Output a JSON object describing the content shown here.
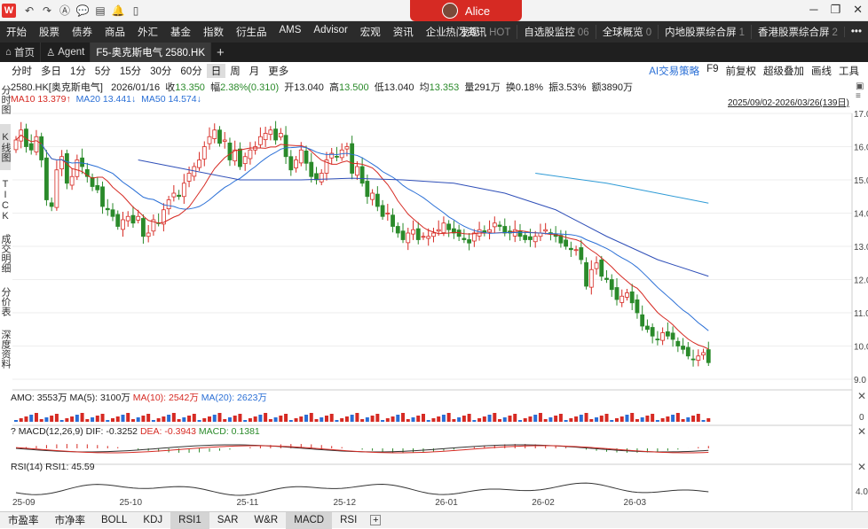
{
  "app": {
    "logo": "W",
    "user": "Alice"
  },
  "menu": {
    "items": [
      "开始",
      "股票",
      "债券",
      "商品",
      "外汇",
      "基金",
      "指数",
      "衍生品",
      "AMS",
      "Advisor",
      "宏观",
      "资讯",
      "企业",
      "发现"
    ],
    "right": [
      {
        "label": "热门资讯",
        "tag": "HOT"
      },
      {
        "label": "自选股监控",
        "tag": "06"
      },
      {
        "label": "全球概览",
        "tag": "0"
      },
      {
        "label": "内地股票综合屏",
        "tag": "1"
      },
      {
        "label": "香港股票综合屏",
        "tag": "2"
      }
    ]
  },
  "tabs": [
    {
      "label": "首页"
    },
    {
      "label": "Agent"
    },
    {
      "label": "F5-奥克斯电气 2580.HK"
    }
  ],
  "periods": [
    "分时",
    "多日",
    "1分",
    "5分",
    "15分",
    "30分",
    "60分",
    "日",
    "周",
    "月",
    "更多"
  ],
  "tools": [
    "AI交易策略",
    "F9",
    "前复权",
    "超级叠加",
    "画线",
    "工具"
  ],
  "leftnav": [
    {
      "label": "分时图"
    },
    {
      "label": "K线图"
    },
    {
      "label": "TICK"
    },
    {
      "label": "成交明细"
    },
    {
      "label": "分价表"
    },
    {
      "label": "深度资料"
    }
  ],
  "quote": {
    "name": "2580.HK[奥克斯电气]",
    "date": "2026/01/16",
    "close_label": "收",
    "close": "13.350",
    "chg_label": "幅",
    "chg": "2.38%(0.310)",
    "open_label": "开",
    "open": "13.040",
    "high_label": "高",
    "high": "13.500",
    "low_label": "低",
    "low": "13.040",
    "avg_label": "均",
    "avg": "13.353",
    "vol_label": "量",
    "vol": "291万",
    "turn_label": "换",
    "turn": "0.18%",
    "amp_label": "振",
    "amp": "3.53%",
    "amt_label": "额",
    "amt": "3890万"
  },
  "ma": {
    "ma10": "MA10 13.379↑",
    "ma20": "MA20 13.441↓",
    "ma50": "MA50 14.574↓"
  },
  "range": "2025/09/02-2026/03/26(139日)",
  "amo": {
    "label": "AMO: 3553万",
    "ma5": "MA(5): 3100万",
    "ma10": "MA(10): 2542万",
    "ma20": "MA(20): 2623万",
    "zero": "0"
  },
  "macd": {
    "label": "MACD(12,26,9)",
    "dif": "DIF: -0.3252",
    "dea": "DEA: -0.3943",
    "macd": "MACD: 0.1381"
  },
  "rsi": {
    "label": "RSI(14)",
    "rsi1": "RSI1: 45.59",
    "level": "4.00"
  },
  "bottom_tabs": [
    "市盈率",
    "市净率",
    "BOLL",
    "KDJ",
    "RSI1",
    "SAR",
    "W&R",
    "MACD",
    "RSI"
  ],
  "colors": {
    "up": "#d62a23",
    "down": "#2a8a2a",
    "ma10": "#d62a23",
    "ma20": "#2a6fd6",
    "ma50": "#2f9bd6"
  },
  "chart_data": {
    "type": "candlestick",
    "ylim": [
      9,
      17
    ],
    "yticks": [
      "17.0",
      "16.0",
      "15.0",
      "14.0",
      "13.0",
      "12.0",
      "11.0",
      "10.0",
      "9.0"
    ],
    "xticks": [
      {
        "label": "25-09",
        "idx": 0
      },
      {
        "label": "25-10",
        "idx": 21
      },
      {
        "label": "25-11",
        "idx": 44
      },
      {
        "label": "25-12",
        "idx": 63
      },
      {
        "label": "26-01",
        "idx": 83
      },
      {
        "label": "26-02",
        "idx": 102
      },
      {
        "label": "26-03",
        "idx": 120
      }
    ],
    "closes": [
      16.2,
      16.5,
      16.0,
      15.9,
      16.3,
      15.6,
      14.4,
      14.2,
      15.3,
      15.7,
      14.9,
      15.1,
      15.6,
      15.4,
      15.1,
      14.8,
      14.7,
      14.2,
      14.1,
      13.9,
      13.6,
      13.8,
      13.9,
      13.7,
      13.9,
      13.3,
      13.4,
      13.8,
      13.7,
      14.1,
      14.4,
      14.6,
      14.5,
      14.9,
      15.2,
      15.4,
      15.6,
      16.0,
      16.3,
      16.5,
      16.1,
      16.2,
      15.6,
      15.9,
      15.4,
      15.7,
      15.9,
      16.0,
      16.3,
      16.4,
      16.5,
      16.2,
      16.4,
      15.7,
      15.3,
      15.6,
      15.9,
      15.5,
      15.1,
      15.0,
      15.2,
      15.6,
      15.8,
      15.7,
      15.9,
      16.0,
      15.2,
      15.4,
      14.9,
      14.5,
      14.6,
      14.2,
      13.9,
      14.0,
      13.6,
      13.4,
      13.2,
      13.4,
      13.5,
      13.2,
      13.3,
      13.3,
      13.4,
      13.5,
      13.7,
      13.5,
      13.4,
      13.3,
      13.2,
      13.1,
      13.4,
      13.5,
      13.4,
      13.5,
      13.7,
      13.6,
      13.4,
      13.4,
      13.5,
      13.3,
      13.2,
      13.2,
      13.3,
      13.4,
      13.5,
      13.4,
      13.3,
      13.1,
      13.0,
      12.9,
      12.9,
      12.6,
      11.8,
      12.3,
      12.5,
      12.1,
      12.0,
      11.7,
      11.4,
      11.5,
      11.6,
      11.3,
      11.0,
      10.6,
      10.5,
      10.3,
      10.2,
      10.4,
      10.3,
      10.2,
      10.0,
      9.9,
      9.7,
      9.6,
      9.7,
      9.8,
      9.5
    ],
    "ma10_start": {
      "idx": 0,
      "note": "computed"
    },
    "ma50_points": [
      [
        24,
        15.6
      ],
      [
        34,
        15.3
      ],
      [
        44,
        15.0
      ],
      [
        56,
        15.0
      ],
      [
        66,
        15.05
      ],
      [
        76,
        15.0
      ],
      [
        86,
        14.9
      ],
      [
        96,
        14.6
      ],
      [
        106,
        14.1
      ],
      [
        116,
        13.3
      ],
      [
        126,
        12.6
      ],
      [
        136,
        12.1
      ]
    ],
    "ma_hk": [
      [
        102,
        15.2
      ],
      [
        116,
        14.9
      ],
      [
        126,
        14.6
      ],
      [
        136,
        14.3
      ]
    ]
  }
}
